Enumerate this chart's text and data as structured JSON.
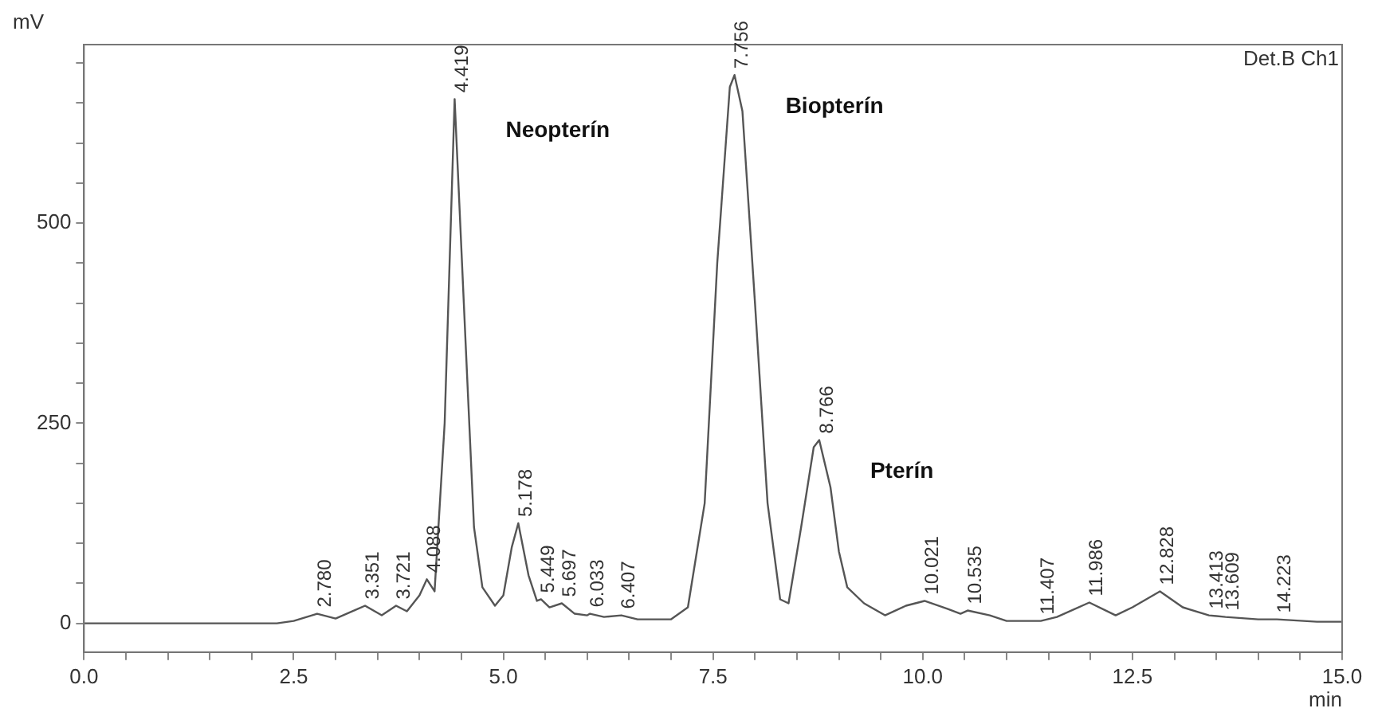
{
  "chart_data": {
    "type": "line",
    "xlabel": "min",
    "ylabel": "mV",
    "xlim": [
      0,
      15
    ],
    "xticks": [
      {
        "value": 0,
        "label": "0.0"
      },
      {
        "value": 0.5,
        "label": null
      },
      {
        "value": 1,
        "label": null
      },
      {
        "value": 1.5,
        "label": null
      },
      {
        "value": 2,
        "label": null
      },
      {
        "value": 2.5,
        "label": "2.5"
      },
      {
        "value": 3,
        "label": null
      },
      {
        "value": 3.5,
        "label": null
      },
      {
        "value": 4,
        "label": null
      },
      {
        "value": 4.5,
        "label": null
      },
      {
        "value": 5,
        "label": "5.0"
      },
      {
        "value": 5.5,
        "label": null
      },
      {
        "value": 6,
        "label": null
      },
      {
        "value": 6.5,
        "label": null
      },
      {
        "value": 7,
        "label": null
      },
      {
        "value": 7.5,
        "label": "7.5"
      },
      {
        "value": 8,
        "label": null
      },
      {
        "value": 8.5,
        "label": null
      },
      {
        "value": 9,
        "label": null
      },
      {
        "value": 9.5,
        "label": null
      },
      {
        "value": 10,
        "label": "10.0"
      },
      {
        "value": 10.5,
        "label": null
      },
      {
        "value": 11,
        "label": null
      },
      {
        "value": 11.5,
        "label": null
      },
      {
        "value": 12,
        "label": null
      },
      {
        "value": 12.5,
        "label": "12.5"
      },
      {
        "value": 13,
        "label": null
      },
      {
        "value": 13.5,
        "label": null
      },
      {
        "value": 14,
        "label": null
      },
      {
        "value": 14.5,
        "label": null
      },
      {
        "value": 15,
        "label": "15.0"
      }
    ],
    "ylim": [
      -36,
      723
    ],
    "yticks": [
      0,
      {
        "value": 50,
        "label": null
      },
      {
        "value": 100,
        "label": null
      },
      {
        "value": 150,
        "label": null
      },
      {
        "value": 200,
        "label": null
      },
      250,
      {
        "value": 300,
        "label": null
      },
      {
        "value": 350,
        "label": null
      },
      {
        "value": 400,
        "label": null
      },
      {
        "value": 450,
        "label": null
      },
      500,
      {
        "value": 550,
        "label": null
      },
      {
        "value": 600,
        "label": null
      },
      {
        "value": 650,
        "label": null
      },
      {
        "value": 700,
        "label": null
      }
    ],
    "grid": false,
    "legend": false,
    "marker": "none",
    "line_style": "solid",
    "series": [
      {
        "color": "#555555",
        "x": [
          0,
          2.3,
          2.5,
          2.78,
          3.0,
          3.351,
          3.55,
          3.721,
          3.85,
          4.0,
          4.088,
          4.18,
          4.3,
          4.419,
          4.55,
          4.65,
          4.75,
          4.9,
          5.0,
          5.1,
          5.178,
          5.3,
          5.4,
          5.449,
          5.55,
          5.697,
          5.85,
          6.0,
          6.033,
          6.2,
          6.407,
          6.6,
          7.0,
          7.2,
          7.4,
          7.55,
          7.7,
          7.756,
          7.85,
          8.0,
          8.15,
          8.3,
          8.4,
          8.55,
          8.7,
          8.766,
          8.9,
          9.0,
          9.1,
          9.3,
          9.55,
          9.8,
          10.021,
          10.3,
          10.45,
          10.535,
          10.8,
          11.0,
          11.407,
          11.6,
          11.986,
          12.3,
          12.5,
          12.828,
          13.1,
          13.413,
          13.609,
          14.0,
          14.223,
          14.7,
          15
        ],
        "values": [
          0,
          0,
          3,
          12,
          6,
          22,
          10,
          22,
          15,
          35,
          55,
          40,
          250,
          655,
          350,
          120,
          45,
          22,
          35,
          95,
          125,
          60,
          28,
          30,
          20,
          25,
          12,
          10,
          12,
          8,
          10,
          5,
          5,
          20,
          150,
          450,
          670,
          685,
          640,
          400,
          150,
          30,
          25,
          120,
          220,
          229,
          170,
          90,
          45,
          25,
          10,
          22,
          28,
          18,
          12,
          16,
          10,
          3,
          3,
          8,
          26,
          10,
          20,
          40,
          20,
          10,
          8,
          5,
          5,
          2,
          2
        ]
      }
    ],
    "annotations": [
      {
        "text": "2.780",
        "x": 2.78,
        "y": 12
      },
      {
        "text": "3.351",
        "x": 3.351,
        "y": 22
      },
      {
        "text": "3.721",
        "x": 3.721,
        "y": 22
      },
      {
        "text": "4.088",
        "x": 4.088,
        "y": 55
      },
      {
        "text": "4.419",
        "x": 4.419,
        "y": 655
      },
      {
        "text": "5.178",
        "x": 5.178,
        "y": 125
      },
      {
        "text": "5.449",
        "x": 5.449,
        "y": 30
      },
      {
        "text": "5.697",
        "x": 5.697,
        "y": 25
      },
      {
        "text": "6.033",
        "x": 6.033,
        "y": 12
      },
      {
        "text": "6.407",
        "x": 6.407,
        "y": 10
      },
      {
        "text": "7.756",
        "x": 7.756,
        "y": 685
      },
      {
        "text": "8.766",
        "x": 8.766,
        "y": 229
      },
      {
        "text": "10.021",
        "x": 10.021,
        "y": 28
      },
      {
        "text": "10.535",
        "x": 10.535,
        "y": 16
      },
      {
        "text": "11.407",
        "x": 11.407,
        "y": 3
      },
      {
        "text": "11.986",
        "x": 11.986,
        "y": 26
      },
      {
        "text": "12.828",
        "x": 12.828,
        "y": 40
      },
      {
        "text": "13.413",
        "x": 13.413,
        "y": 10
      },
      {
        "text": "13.609",
        "x": 13.609,
        "y": 8
      },
      {
        "text": "14.223",
        "x": 14.223,
        "y": 5
      },
      {
        "text": "Neopterín",
        "x": 4.419,
        "y": 655
      },
      {
        "text": "Biopterín",
        "x": 7.756,
        "y": 685
      },
      {
        "text": "Pterín",
        "x": 8.766,
        "y": 229
      },
      "Det.B Ch1"
    ]
  }
}
